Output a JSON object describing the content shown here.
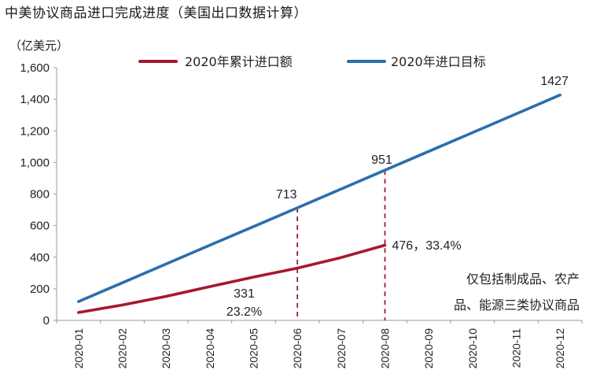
{
  "title": "中美协议商品进口完成进度（美国出口数据计算）",
  "chart_data": {
    "type": "line",
    "ylabel": "（亿美元）",
    "ylim": [
      0,
      1600
    ],
    "yticks": [
      0,
      200,
      400,
      600,
      800,
      1000,
      1200,
      1400,
      1600
    ],
    "ytick_labels": [
      "0",
      "200",
      "400",
      "600",
      "800",
      "1,000",
      "1,200",
      "1,400",
      "1,600"
    ],
    "categories": [
      "2020-01",
      "2020-02",
      "2020-03",
      "2020-04",
      "2020-05",
      "2020-06",
      "2020-07",
      "2020-08",
      "2020-09",
      "2020-10",
      "2020-11",
      "2020-12"
    ],
    "series": [
      {
        "name": "2020年累计进口额",
        "color": "#a5192b",
        "values": [
          50,
          97,
          152,
          214,
          274,
          331,
          398,
          476,
          null,
          null,
          null,
          null
        ]
      },
      {
        "name": "2020年进口目标",
        "color": "#2a6fad",
        "values": [
          119,
          238,
          357,
          476,
          594,
          713,
          832,
          951,
          1070,
          1189,
          1308,
          1427
        ]
      }
    ],
    "legend": [
      "2020年累计进口额",
      "2020年进口目标"
    ],
    "annotations": [
      {
        "text": "713",
        "category": "2020-06",
        "series": "2020年进口目标"
      },
      {
        "text": "951",
        "category": "2020-08",
        "series": "2020年进口目标"
      },
      {
        "text": "1427",
        "category": "2020-12",
        "series": "2020年进口目标"
      },
      {
        "text": "331",
        "category": "2020-06",
        "series": "2020年累计进口额"
      },
      {
        "text": "23.2%",
        "category": "2020-06",
        "series": "2020年累计进口额"
      },
      {
        "text": "476，33.4%",
        "category": "2020-08",
        "series": "2020年累计进口额"
      }
    ],
    "guide_lines": [
      "2020-06",
      "2020-08"
    ],
    "note_lines": [
      "仅包括制成品、农产",
      "品、能源三类协议商品"
    ]
  }
}
